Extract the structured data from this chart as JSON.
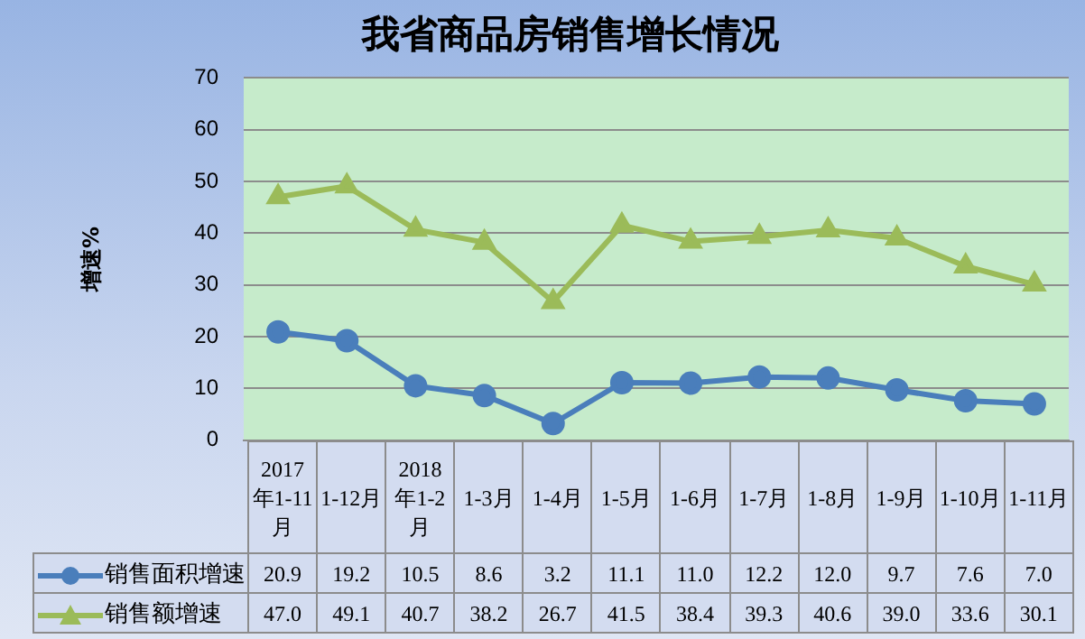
{
  "chart_data": {
    "type": "line",
    "title": "我省商品房销售增长情况",
    "ylabel": "增速%",
    "categories": [
      "2017年1-11月",
      "1-12月",
      "2018年1-2月",
      "1-3月",
      "1-4月",
      "1-5月",
      "1-6月",
      "1-7月",
      "1-8月",
      "1-9月",
      "1-10月",
      "1-11月"
    ],
    "series": [
      {
        "name": "销售面积增速",
        "color": "#4a7ebb",
        "marker": "circle",
        "values": [
          20.9,
          19.2,
          10.5,
          8.6,
          3.2,
          11.1,
          11.0,
          12.2,
          12.0,
          9.7,
          7.6,
          7.0
        ],
        "value_labels": [
          "20.9",
          "19.2",
          "10.5",
          "8.6",
          "3.2",
          "11.1",
          "11.0",
          "12.2",
          "12.0",
          "9.7",
          "7.6",
          "7.0"
        ]
      },
      {
        "name": "销售额增速",
        "color": "#9bbb59",
        "marker": "triangle",
        "values": [
          47.0,
          49.1,
          40.7,
          38.2,
          26.7,
          41.5,
          38.4,
          39.3,
          40.6,
          39.0,
          33.6,
          30.1
        ],
        "value_labels": [
          "47.0",
          "49.1",
          "40.7",
          "38.2",
          "26.7",
          "41.5",
          "38.4",
          "39.3",
          "40.6",
          "39.0",
          "33.6",
          "30.1"
        ]
      }
    ],
    "ylim": [
      0,
      70
    ],
    "yticks": [
      0,
      10,
      20,
      30,
      40,
      50,
      60,
      70
    ],
    "grid": "y",
    "legend": "bottom"
  }
}
